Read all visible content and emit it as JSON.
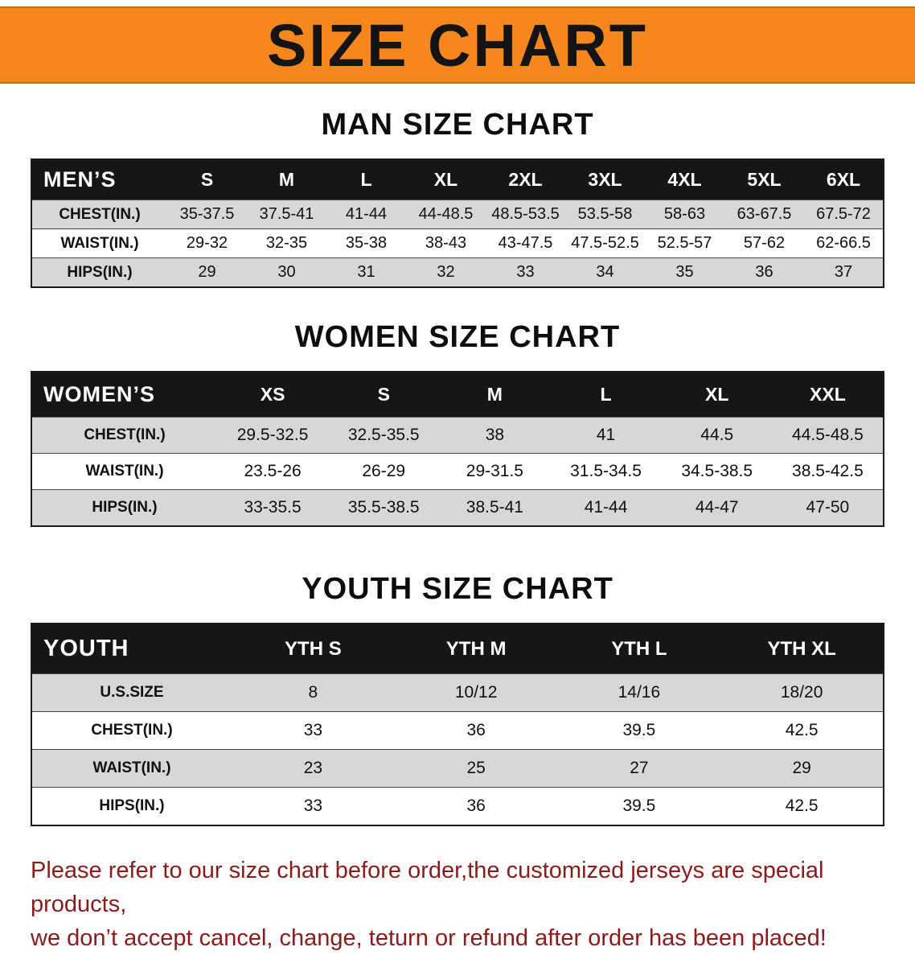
{
  "banner": {
    "title": "SIZE CHART"
  },
  "colors": {
    "banner_orange": "#f6871f",
    "table_header_bg": "#161616",
    "row_alt_gray": "#d7d7d7",
    "footer_red": "#8b1b1b"
  },
  "sections": [
    {
      "heading": "MAN SIZE CHART",
      "table": {
        "label": "MEN’S",
        "columns": [
          "S",
          "M",
          "L",
          "XL",
          "2XL",
          "3XL",
          "4XL",
          "5XL",
          "6XL"
        ],
        "rows": [
          {
            "label": "CHEST(IN.)",
            "values": [
              "35-37.5",
              "37.5-41",
              "41-44",
              "44-48.5",
              "48.5-53.5",
              "53.5-58",
              "58-63",
              "63-67.5",
              "67.5-72"
            ]
          },
          {
            "label": "WAIST(IN.)",
            "values": [
              "29-32",
              "32-35",
              "35-38",
              "38-43",
              "43-47.5",
              "47.5-52.5",
              "52.5-57",
              "57-62",
              "62-66.5"
            ]
          },
          {
            "label": "HIPS(IN.)",
            "values": [
              "29",
              "30",
              "31",
              "32",
              "33",
              "34",
              "35",
              "36",
              "37"
            ]
          }
        ]
      }
    },
    {
      "heading": "WOMEN SIZE CHART",
      "table": {
        "label": "WOMEN’S",
        "columns": [
          "XS",
          "S",
          "M",
          "L",
          "XL",
          "XXL"
        ],
        "rows": [
          {
            "label": "CHEST(IN.)",
            "values": [
              "29.5-32.5",
              "32.5-35.5",
              "38",
              "41",
              "44.5",
              "44.5-48.5"
            ]
          },
          {
            "label": "WAIST(IN.)",
            "values": [
              "23.5-26",
              "26-29",
              "29-31.5",
              "31.5-34.5",
              "34.5-38.5",
              "38.5-42.5"
            ]
          },
          {
            "label": "HIPS(IN.)",
            "values": [
              "33-35.5",
              "35.5-38.5",
              "38.5-41",
              "41-44",
              "44-47",
              "47-50"
            ]
          }
        ]
      }
    },
    {
      "heading": "YOUTH SIZE CHART",
      "table": {
        "label": "YOUTH",
        "columns": [
          "YTH S",
          "YTH M",
          "YTH L",
          "YTH XL"
        ],
        "rows": [
          {
            "label": "U.S.SIZE",
            "values": [
              "8",
              "10/12",
              "14/16",
              "18/20"
            ]
          },
          {
            "label": "CHEST(IN.)",
            "values": [
              "33",
              "36",
              "39.5",
              "42.5"
            ]
          },
          {
            "label": "WAIST(IN.)",
            "values": [
              "23",
              "25",
              "27",
              "29"
            ]
          },
          {
            "label": "HIPS(IN.)",
            "values": [
              "33",
              "36",
              "39.5",
              "42.5"
            ]
          }
        ]
      }
    }
  ],
  "footer": {
    "line1": "Please refer to our size chart before order,the customized jerseys are special products,",
    "line2": "we don’t accept cancel, change, teturn or refund after order has been placed!"
  }
}
